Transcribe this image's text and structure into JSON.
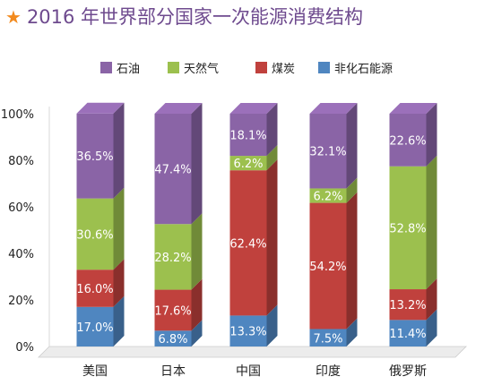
{
  "title": "2016 年世界部分国家一次能源消费结构",
  "colors": {
    "title": "#6e4a8e",
    "star": "#f28a1e",
    "石油": "#8a64a6",
    "天然气": "#9cc04e",
    "煤炭": "#c0413d",
    "非化石能源": "#4f86c0"
  },
  "chart_data": {
    "type": "bar",
    "stacked": true,
    "categories": [
      "美国",
      "日本",
      "中国",
      "印度",
      "俄罗斯"
    ],
    "series": [
      {
        "name": "非化石能源",
        "values": [
          17.0,
          6.8,
          13.3,
          7.5,
          11.4
        ],
        "labels": [
          "17.0%",
          "6.8%",
          "13.3%",
          "7.5%",
          "11.4%"
        ]
      },
      {
        "name": "煤炭",
        "values": [
          16.0,
          17.6,
          62.4,
          54.2,
          13.2
        ],
        "labels": [
          "16.0%",
          "17.6%",
          "62.4%",
          "54.2%",
          "13.2%"
        ]
      },
      {
        "name": "天然气",
        "values": [
          30.6,
          28.2,
          6.2,
          6.2,
          52.8
        ],
        "labels": [
          "30.6%",
          "28.2%",
          "6.2%",
          "6.2%",
          "52.8%"
        ]
      },
      {
        "name": "石油",
        "values": [
          36.5,
          47.4,
          18.1,
          32.1,
          22.6
        ],
        "labels": [
          "36.5%",
          "47.4%",
          "18.1%",
          "32.1%",
          "22.6%"
        ]
      }
    ],
    "legend_order": [
      "石油",
      "天然气",
      "煤炭",
      "非化石能源"
    ],
    "y_ticks": [
      "0%",
      "20%",
      "40%",
      "60%",
      "80%",
      "100%"
    ],
    "ylim": [
      0,
      100
    ],
    "legend_position": "top",
    "grid": false,
    "style": "3d-column"
  }
}
